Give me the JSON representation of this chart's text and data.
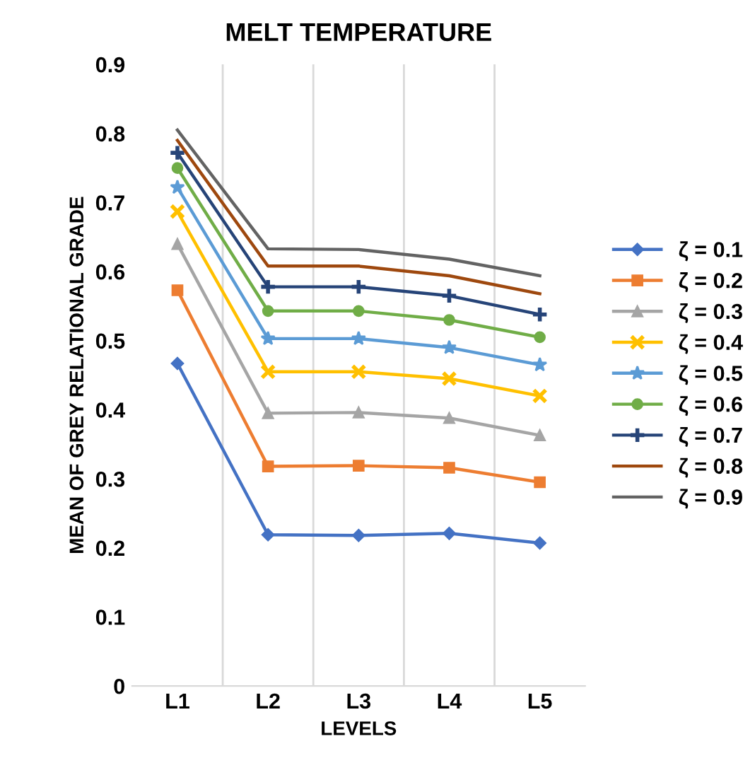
{
  "chart_data": {
    "type": "line",
    "title": "MELT TEMPERATURE",
    "xlabel": "LEVELS",
    "ylabel": "MEAN OF GREY RELATIONAL GRADE",
    "categories": [
      "L1",
      "L2",
      "L3",
      "L4",
      "L5"
    ],
    "ylim": [
      0,
      0.9
    ],
    "yticks": [
      0,
      0.1,
      0.2,
      0.3,
      0.4,
      0.5,
      0.6,
      0.7,
      0.8,
      0.9
    ],
    "grid": "x",
    "legend": "right",
    "series": [
      {
        "name": "ζ = 0.1",
        "color": "#4472c4",
        "marker": "diamond",
        "values": [
          0.467,
          0.219,
          0.218,
          0.221,
          0.207
        ]
      },
      {
        "name": "ζ = 0.2",
        "color": "#ed7d31",
        "marker": "square",
        "values": [
          0.573,
          0.318,
          0.319,
          0.316,
          0.295
        ]
      },
      {
        "name": "ζ = 0.3",
        "color": "#a5a5a5",
        "marker": "triangle",
        "values": [
          0.64,
          0.395,
          0.396,
          0.388,
          0.363
        ]
      },
      {
        "name": "ζ = 0.4",
        "color": "#ffc000",
        "marker": "cross",
        "values": [
          0.687,
          0.455,
          0.455,
          0.445,
          0.42
        ]
      },
      {
        "name": "ζ = 0.5",
        "color": "#5b9bd5",
        "marker": "star",
        "values": [
          0.722,
          0.503,
          0.503,
          0.49,
          0.465
        ]
      },
      {
        "name": "ζ = 0.6",
        "color": "#70ad47",
        "marker": "circle",
        "values": [
          0.75,
          0.543,
          0.543,
          0.53,
          0.505
        ]
      },
      {
        "name": "ζ = 0.7",
        "color": "#264478",
        "marker": "plus",
        "values": [
          0.772,
          0.578,
          0.578,
          0.565,
          0.538
        ]
      },
      {
        "name": "ζ = 0.8",
        "color": "#9e480e",
        "marker": "none",
        "values": [
          0.79,
          0.608,
          0.608,
          0.594,
          0.568
        ]
      },
      {
        "name": "ζ = 0.9",
        "color": "#636363",
        "marker": "none",
        "values": [
          0.805,
          0.633,
          0.632,
          0.618,
          0.594
        ]
      }
    ]
  }
}
